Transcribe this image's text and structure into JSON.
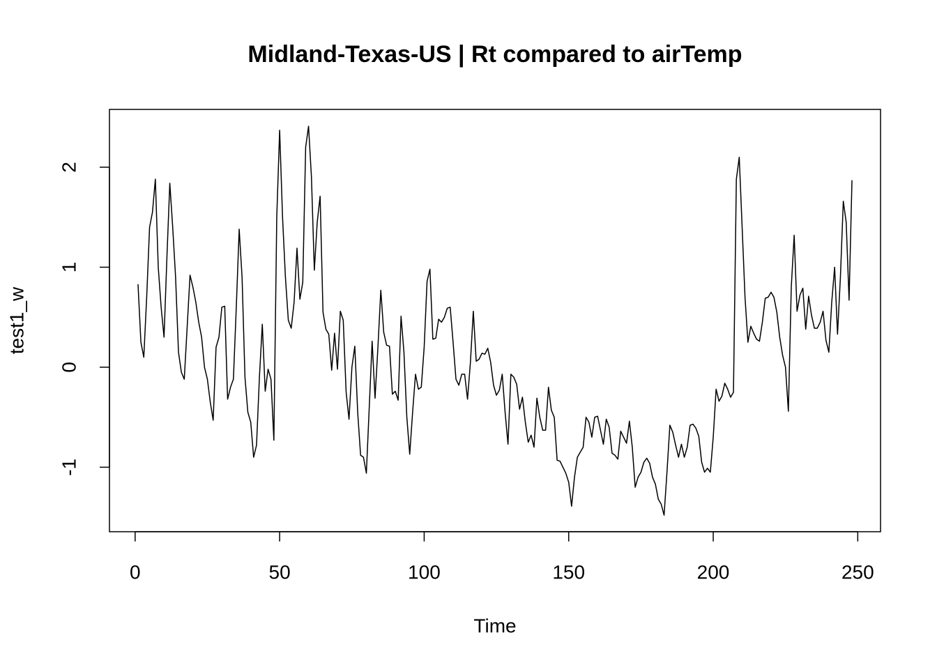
{
  "chart_data": {
    "type": "line",
    "title": "Midland-Texas-US | Rt compared to airTemp",
    "x_label": "Time",
    "y_label": "test1_w",
    "x": [
      1,
      2,
      3,
      4,
      5,
      6,
      7,
      8,
      9,
      10,
      11,
      12,
      13,
      14,
      15,
      16,
      17,
      18,
      19,
      20,
      21,
      22,
      23,
      24,
      25,
      26,
      27,
      28,
      29,
      30,
      31,
      32,
      33,
      34,
      35,
      36,
      37,
      38,
      39,
      40,
      41,
      42,
      43,
      44,
      45,
      46,
      47,
      48,
      49,
      50,
      51,
      52,
      53,
      54,
      55,
      56,
      57,
      58,
      59,
      60,
      61,
      62,
      63,
      64,
      65,
      66,
      67,
      68,
      69,
      70,
      71,
      72,
      73,
      74,
      75,
      76,
      77,
      78,
      79,
      80,
      81,
      82,
      83,
      84,
      85,
      86,
      87,
      88,
      89,
      90,
      91,
      92,
      93,
      94,
      95,
      96,
      97,
      98,
      99,
      100,
      101,
      102,
      103,
      104,
      105,
      106,
      107,
      108,
      109,
      110,
      111,
      112,
      113,
      114,
      115,
      116,
      117,
      118,
      119,
      120,
      121,
      122,
      123,
      124,
      125,
      126,
      127,
      128,
      129,
      130,
      131,
      132,
      133,
      134,
      135,
      136,
      137,
      138,
      139,
      140,
      141,
      142,
      143,
      144,
      145,
      146,
      147,
      148,
      149,
      150,
      151,
      152,
      153,
      154,
      155,
      156,
      157,
      158,
      159,
      160,
      161,
      162,
      163,
      164,
      165,
      166,
      167,
      168,
      169,
      170,
      171,
      172,
      173,
      174,
      175,
      176,
      177,
      178,
      179,
      180,
      181,
      182,
      183,
      184,
      185,
      186,
      187,
      188,
      189,
      190,
      191,
      192,
      193,
      194,
      195,
      196,
      197,
      198,
      199,
      200,
      201,
      202,
      203,
      204,
      205,
      206,
      207,
      208,
      209,
      210,
      211,
      212,
      213,
      214,
      215,
      216,
      217,
      218,
      219,
      220,
      221,
      222,
      223,
      224,
      225,
      226,
      227,
      228,
      229,
      230,
      231,
      232,
      233,
      234,
      235,
      236,
      237,
      238,
      239,
      240,
      241,
      242,
      243,
      244,
      245,
      246,
      247,
      248
    ],
    "series": [
      {
        "name": "test1_w",
        "color": "#000000",
        "values": [
          0.83,
          0.25,
          0.1,
          0.7,
          1.4,
          1.55,
          1.88,
          1.0,
          0.6,
          0.3,
          1.1,
          1.84,
          1.4,
          0.9,
          0.15,
          -0.05,
          -0.12,
          0.4,
          0.92,
          0.8,
          0.65,
          0.45,
          0.3,
          0.0,
          -0.12,
          -0.35,
          -0.53,
          0.2,
          0.3,
          0.6,
          0.61,
          -0.32,
          -0.2,
          -0.12,
          0.6,
          1.38,
          0.9,
          -0.1,
          -0.45,
          -0.55,
          -0.9,
          -0.78,
          -0.1,
          0.43,
          -0.24,
          -0.02,
          -0.12,
          -0.73,
          1.5,
          2.37,
          1.5,
          0.9,
          0.47,
          0.39,
          0.65,
          1.19,
          0.68,
          0.85,
          2.2,
          2.41,
          1.9,
          0.97,
          1.45,
          1.71,
          0.55,
          0.38,
          0.33,
          -0.03,
          0.34,
          -0.02,
          0.56,
          0.47,
          -0.25,
          -0.52,
          0.0,
          0.21,
          -0.45,
          -0.88,
          -0.9,
          -1.06,
          -0.4,
          0.26,
          -0.31,
          0.2,
          0.77,
          0.35,
          0.22,
          0.21,
          -0.27,
          -0.24,
          -0.33,
          0.51,
          0.15,
          -0.5,
          -0.87,
          -0.45,
          -0.07,
          -0.22,
          -0.2,
          0.2,
          0.86,
          0.98,
          0.28,
          0.29,
          0.48,
          0.45,
          0.5,
          0.59,
          0.6,
          0.25,
          -0.12,
          -0.18,
          -0.07,
          -0.07,
          -0.32,
          0.05,
          0.56,
          0.06,
          0.08,
          0.14,
          0.13,
          0.19,
          0.05,
          -0.18,
          -0.28,
          -0.23,
          -0.07,
          -0.45,
          -0.77,
          -0.07,
          -0.1,
          -0.17,
          -0.42,
          -0.3,
          -0.55,
          -0.75,
          -0.68,
          -0.8,
          -0.31,
          -0.5,
          -0.63,
          -0.63,
          -0.2,
          -0.43,
          -0.5,
          -0.93,
          -0.94,
          -1.0,
          -1.06,
          -1.15,
          -1.39,
          -1.1,
          -0.9,
          -0.85,
          -0.8,
          -0.5,
          -0.55,
          -0.7,
          -0.5,
          -0.49,
          -0.63,
          -0.77,
          -0.52,
          -0.6,
          -0.86,
          -0.88,
          -0.92,
          -0.64,
          -0.7,
          -0.76,
          -0.54,
          -0.8,
          -1.2,
          -1.1,
          -1.05,
          -0.95,
          -0.91,
          -0.96,
          -1.1,
          -1.17,
          -1.32,
          -1.37,
          -1.48,
          -1.05,
          -0.58,
          -0.65,
          -0.78,
          -0.9,
          -0.77,
          -0.9,
          -0.8,
          -0.58,
          -0.57,
          -0.61,
          -0.69,
          -0.95,
          -1.05,
          -1.01,
          -1.05,
          -0.7,
          -0.22,
          -0.34,
          -0.29,
          -0.16,
          -0.22,
          -0.3,
          -0.25,
          1.88,
          2.1,
          1.4,
          0.7,
          0.25,
          0.41,
          0.34,
          0.28,
          0.26,
          0.45,
          0.69,
          0.7,
          0.75,
          0.7,
          0.55,
          0.3,
          0.12,
          0.0,
          -0.44,
          0.8,
          1.32,
          0.56,
          0.72,
          0.79,
          0.38,
          0.71,
          0.52,
          0.39,
          0.39,
          0.45,
          0.56,
          0.27,
          0.15,
          0.65,
          1.0,
          0.33,
          0.9,
          1.66,
          1.45,
          0.67,
          1.87
        ]
      }
    ],
    "xlim": [
      -8.88,
      257.88
    ],
    "xticks": [
      0,
      50,
      100,
      150,
      200,
      250
    ],
    "ylim": [
      -1.645,
      2.578
    ],
    "yticks": [
      -1,
      0,
      1,
      2
    ]
  }
}
